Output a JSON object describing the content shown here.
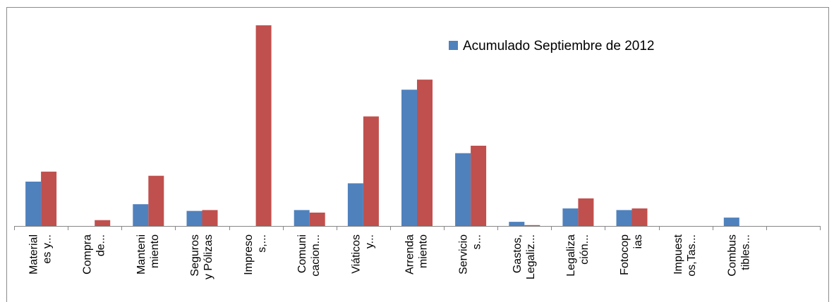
{
  "chart_data": {
    "type": "bar",
    "categories": [
      [
        "Material",
        "es y..."
      ],
      [
        "Compra",
        "de..."
      ],
      [
        "Manteni",
        "miento"
      ],
      [
        "Seguros",
        "y Pólizas"
      ],
      [
        "Impreso",
        "s,..."
      ],
      [
        "Comuni",
        "cacion..."
      ],
      [
        "Viáticos",
        "y..."
      ],
      [
        "Arrenda",
        "miento"
      ],
      [
        "Servicio",
        "s..."
      ],
      [
        "Gastos,",
        "Legaliz..."
      ],
      [
        "Legaliza",
        "ción..."
      ],
      [
        "Fotocop",
        "ias"
      ],
      [
        "Impuest",
        "os,Tas..."
      ],
      [
        "Combus",
        "tibles..."
      ],
      [
        "",
        ""
      ]
    ],
    "series": [
      {
        "name": "Acumulado Septiembre de 2012",
        "color": "#4f81bd",
        "values": [
          53,
          0,
          26,
          18,
          0,
          19,
          51,
          163,
          87,
          5,
          21,
          19,
          0,
          10,
          0
        ]
      },
      {
        "name": "",
        "color": "#c0504d",
        "values": [
          65,
          7,
          60,
          19,
          240,
          16,
          131,
          175,
          96,
          1,
          33,
          21,
          0,
          0,
          0
        ]
      }
    ],
    "ylim": [
      0,
      250
    ],
    "grid": false,
    "legend": "top-right",
    "title": "",
    "xlabel": "",
    "ylabel": ""
  }
}
